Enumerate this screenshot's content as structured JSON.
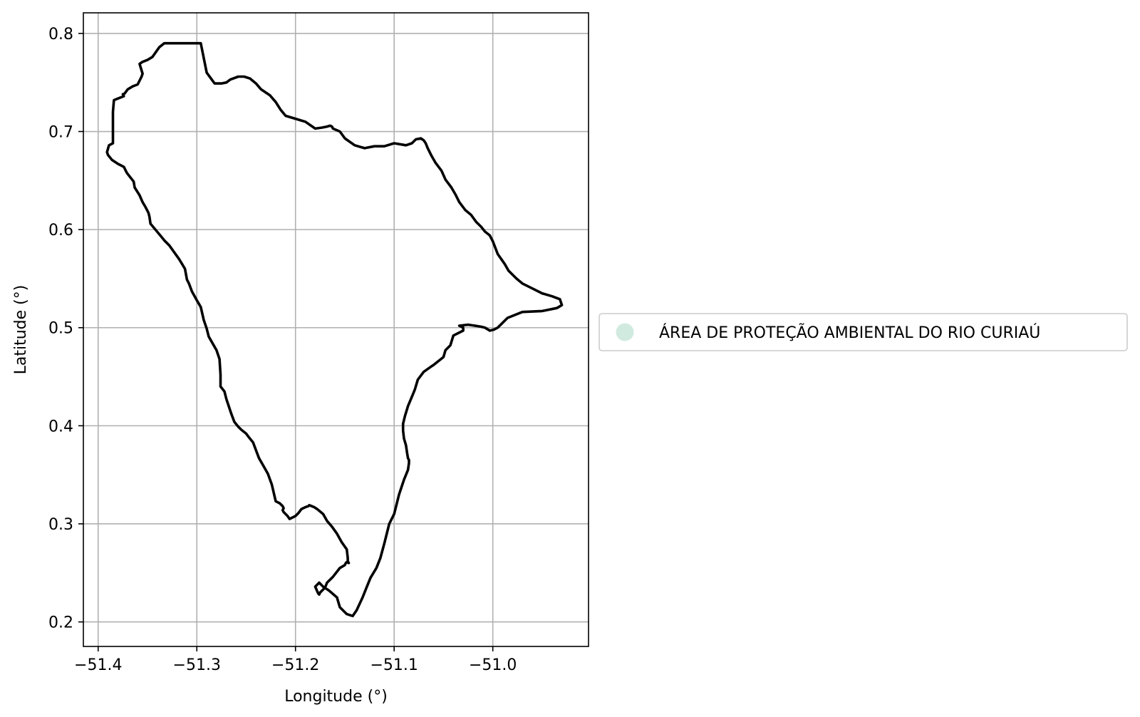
{
  "chart_data": {
    "type": "map",
    "xlabel": "Longitude (°)",
    "ylabel": "Latitude (°)",
    "xlim": [
      -51.415,
      -50.903
    ],
    "ylim": [
      0.175,
      0.821
    ],
    "xticks": [
      -51.4,
      -51.3,
      -51.2,
      -51.1,
      -51.0
    ],
    "xtick_labels": [
      "−51.4",
      "−51.3",
      "−51.2",
      "−51.1",
      "−51.0"
    ],
    "yticks": [
      0.2,
      0.3,
      0.4,
      0.5,
      0.6,
      0.7,
      0.8
    ],
    "ytick_labels": [
      "0.2",
      "0.3",
      "0.4",
      "0.5",
      "0.6",
      "0.7",
      "0.8"
    ],
    "grid": true,
    "legend_position": "center-right outside",
    "colors": {
      "boundary": "#000000",
      "grid": "#b0b0b0",
      "legend_marker": "#d1eadf",
      "legend_border": "#cccccc"
    },
    "series": [
      {
        "name": "ÁREA DE PROTEÇÃO AMBIENTAL DO RIO CURIAÚ",
        "geometry": "polygon-outline",
        "lon": [
          -51.333,
          -51.338,
          -51.345,
          -51.35,
          -51.355,
          -51.358,
          -51.355,
          -51.356,
          -51.36,
          -51.365,
          -51.37,
          -51.373,
          -51.374,
          -51.375,
          -51.374,
          -51.379,
          -51.384,
          -51.385,
          -51.385,
          -51.385,
          -51.389,
          -51.391,
          -51.39,
          -51.386,
          -51.38,
          -51.374,
          -51.371,
          -51.368,
          -51.364,
          -51.363,
          -51.358,
          -51.355,
          -51.352,
          -51.349,
          -51.348,
          -51.347,
          -51.342,
          -51.337,
          -51.333,
          -51.328,
          -51.323,
          -51.318,
          -51.312,
          -51.31,
          -51.308,
          -51.305,
          -51.3,
          -51.296,
          -51.293,
          -51.29,
          -51.288,
          -51.284,
          -51.28,
          -51.277,
          -51.276,
          -51.276,
          -51.272,
          -51.27,
          -51.268,
          -51.265,
          -51.262,
          -51.258,
          -51.255,
          -51.25,
          -51.247,
          -51.243,
          -51.24,
          -51.237,
          -51.233,
          -51.228,
          -51.224,
          -51.22,
          -51.216,
          -51.214,
          -51.213,
          -51.212,
          -51.213,
          -51.212,
          -51.208,
          -51.206,
          -51.2,
          -51.197,
          -51.194,
          -51.19,
          -51.187,
          -51.186,
          -51.181,
          -51.178,
          -51.172,
          -51.168,
          -51.163,
          -51.158,
          -51.153,
          -51.148,
          -51.147,
          -51.147,
          -51.146,
          -51.148,
          -51.149,
          -51.15,
          -51.155,
          -51.162,
          -51.168,
          -51.17,
          -51.175,
          -51.176,
          -51.177,
          -51.18,
          -51.176,
          -51.172,
          -51.166,
          -51.158,
          -51.155,
          -51.148,
          -51.142,
          -51.138,
          -51.132,
          -51.128,
          -51.124,
          -51.118,
          -51.114,
          -51.11,
          -51.105,
          -51.1,
          -51.095,
          -51.09,
          -51.086,
          -51.085,
          -51.085,
          -51.086,
          -51.087,
          -51.088,
          -51.09,
          -51.091,
          -51.091,
          -51.089,
          -51.086,
          -51.081,
          -51.079,
          -51.076,
          -51.07,
          -51.063,
          -51.06,
          -51.05,
          -51.048,
          -51.043,
          -51.04,
          -51.03,
          -51.03,
          -51.032,
          -51.034,
          -51.025,
          -51.018,
          -51.012,
          -51.008,
          -51.003,
          -50.999,
          -50.995,
          -50.985,
          -50.97,
          -50.95,
          -50.935,
          -50.93,
          -50.932,
          -50.94,
          -50.95,
          -50.96,
          -50.97,
          -50.976,
          -50.984,
          -50.988,
          -50.995,
          -51.0,
          -51.001,
          -51.003,
          -51.008,
          -51.012,
          -51.017,
          -51.022,
          -51.028,
          -51.034,
          -51.038,
          -51.042,
          -51.048,
          -51.052,
          -51.058,
          -51.062,
          -51.066,
          -51.068,
          -51.07,
          -51.073,
          -51.078,
          -51.082,
          -51.088,
          -51.1,
          -51.11,
          -51.12,
          -51.13,
          -51.14,
          -51.15,
          -51.155,
          -51.162,
          -51.163,
          -51.165,
          -51.168,
          -51.173,
          -51.18,
          -51.19,
          -51.2,
          -51.21,
          -51.215,
          -51.22,
          -51.226,
          -51.235,
          -51.24,
          -51.246,
          -51.252,
          -51.258,
          -51.266,
          -51.27,
          -51.275,
          -51.282,
          -51.29,
          -51.296,
          -51.3,
          -51.304,
          -51.31,
          -51.316,
          -51.32,
          -51.325,
          -51.328,
          -51.333
        ],
        "lat": [
          0.79,
          0.786,
          0.776,
          0.773,
          0.771,
          0.769,
          0.759,
          0.756,
          0.748,
          0.746,
          0.743,
          0.739,
          0.738,
          0.738,
          0.736,
          0.734,
          0.732,
          0.72,
          0.7,
          0.688,
          0.686,
          0.679,
          0.676,
          0.671,
          0.667,
          0.664,
          0.658,
          0.654,
          0.649,
          0.643,
          0.635,
          0.628,
          0.623,
          0.617,
          0.613,
          0.606,
          0.6,
          0.594,
          0.589,
          0.584,
          0.577,
          0.57,
          0.56,
          0.549,
          0.545,
          0.537,
          0.528,
          0.521,
          0.508,
          0.499,
          0.491,
          0.484,
          0.477,
          0.468,
          0.452,
          0.44,
          0.435,
          0.427,
          0.421,
          0.412,
          0.404,
          0.399,
          0.396,
          0.392,
          0.388,
          0.383,
          0.375,
          0.367,
          0.36,
          0.351,
          0.34,
          0.323,
          0.321,
          0.319,
          0.318,
          0.316,
          0.314,
          0.312,
          0.308,
          0.305,
          0.308,
          0.311,
          0.315,
          0.317,
          0.318,
          0.319,
          0.317,
          0.315,
          0.31,
          0.303,
          0.297,
          0.29,
          0.281,
          0.274,
          0.265,
          0.262,
          0.26,
          0.261,
          0.26,
          0.258,
          0.255,
          0.246,
          0.24,
          0.235,
          0.23,
          0.228,
          0.229,
          0.236,
          0.24,
          0.236,
          0.232,
          0.225,
          0.215,
          0.208,
          0.206,
          0.212,
          0.225,
          0.235,
          0.245,
          0.255,
          0.265,
          0.28,
          0.3,
          0.31,
          0.33,
          0.345,
          0.355,
          0.362,
          0.365,
          0.367,
          0.373,
          0.38,
          0.387,
          0.395,
          0.402,
          0.41,
          0.42,
          0.432,
          0.437,
          0.447,
          0.455,
          0.46,
          0.462,
          0.47,
          0.477,
          0.482,
          0.492,
          0.497,
          0.5,
          0.501,
          0.502,
          0.503,
          0.502,
          0.501,
          0.5,
          0.497,
          0.498,
          0.5,
          0.51,
          0.516,
          0.517,
          0.52,
          0.523,
          0.529,
          0.532,
          0.535,
          0.54,
          0.545,
          0.55,
          0.558,
          0.565,
          0.575,
          0.588,
          0.59,
          0.594,
          0.598,
          0.603,
          0.608,
          0.615,
          0.62,
          0.628,
          0.636,
          0.643,
          0.651,
          0.66,
          0.668,
          0.675,
          0.683,
          0.688,
          0.691,
          0.693,
          0.692,
          0.688,
          0.686,
          0.688,
          0.685,
          0.685,
          0.683,
          0.686,
          0.693,
          0.7,
          0.703,
          0.705,
          0.706,
          0.705,
          0.704,
          0.703,
          0.71,
          0.713,
          0.716,
          0.722,
          0.73,
          0.737,
          0.743,
          0.749,
          0.754,
          0.756,
          0.756,
          0.753,
          0.75,
          0.749,
          0.749,
          0.76,
          0.79
        ]
      }
    ]
  }
}
